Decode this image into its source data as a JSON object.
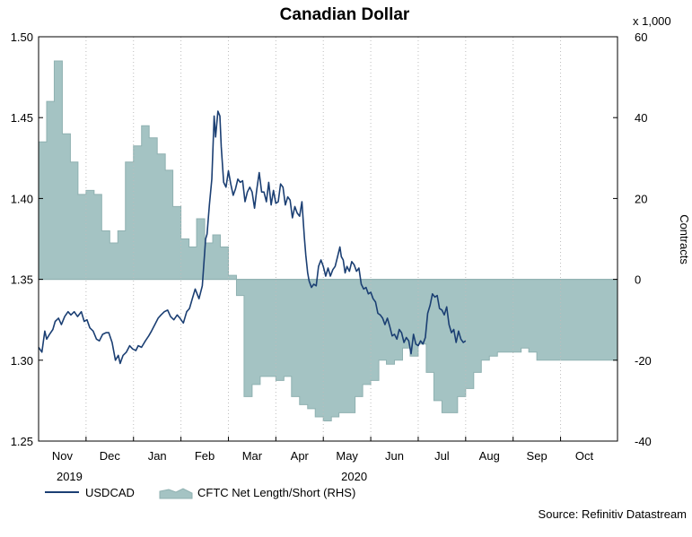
{
  "chart_data": {
    "type": "area+line",
    "title": "Canadian Dollar",
    "left_axis": {
      "range": [
        1.25,
        1.5
      ],
      "ticks": [
        "1.25",
        "1.30",
        "1.35",
        "1.40",
        "1.45",
        "1.50"
      ]
    },
    "right_axis": {
      "label": "Contracts",
      "unit_note": "x 1,000",
      "range": [
        -40,
        60
      ],
      "ticks": [
        "-40",
        "-20",
        "0",
        "20",
        "40",
        "60"
      ]
    },
    "x_axis": {
      "months": [
        {
          "label": "Nov",
          "pos": 1
        },
        {
          "label": "Dec",
          "pos": 2
        },
        {
          "label": "Jan",
          "pos": 3
        },
        {
          "label": "Feb",
          "pos": 4
        },
        {
          "label": "Mar",
          "pos": 5
        },
        {
          "label": "Apr",
          "pos": 6
        },
        {
          "label": "May",
          "pos": 7
        },
        {
          "label": "Jun",
          "pos": 8
        },
        {
          "label": "Jul",
          "pos": 9
        },
        {
          "label": "Aug",
          "pos": 10
        },
        {
          "label": "Sep",
          "pos": 11
        },
        {
          "label": "Oct",
          "pos": 12
        }
      ],
      "years": [
        {
          "label": "2019",
          "pos": 1
        },
        {
          "label": "2020",
          "pos": 7
        }
      ],
      "range": [
        0.5,
        12.7
      ]
    },
    "legend": {
      "usdcad": "USDCAD",
      "cftc": "CFTC Net Length/Short (RHS)"
    },
    "source": "Source: Refinitiv Datastream",
    "colors": {
      "line": "#1b3f73",
      "area": "#a4c3c3",
      "area_edge": "#8fb1b1",
      "grid": "#bdbdbd"
    },
    "series": [
      {
        "name": "CFTC Net Length/Short (RHS)",
        "kind": "step-area",
        "weeks": [
          [
            0.5,
            34
          ],
          [
            0.67,
            44
          ],
          [
            0.83,
            54
          ],
          [
            1.0,
            36
          ],
          [
            1.17,
            29
          ],
          [
            1.33,
            21
          ],
          [
            1.5,
            22
          ],
          [
            1.67,
            21
          ],
          [
            1.83,
            12
          ],
          [
            2.0,
            9
          ],
          [
            2.17,
            12
          ],
          [
            2.33,
            29
          ],
          [
            2.5,
            33
          ],
          [
            2.67,
            38
          ],
          [
            2.83,
            35
          ],
          [
            3.0,
            31
          ],
          [
            3.17,
            27
          ],
          [
            3.33,
            18
          ],
          [
            3.5,
            10
          ],
          [
            3.67,
            8
          ],
          [
            3.83,
            15
          ],
          [
            4.0,
            9
          ],
          [
            4.17,
            11
          ],
          [
            4.33,
            8
          ],
          [
            4.5,
            1
          ],
          [
            4.67,
            -4
          ],
          [
            4.83,
            -29
          ],
          [
            5.0,
            -26
          ],
          [
            5.17,
            -24
          ],
          [
            5.33,
            -24
          ],
          [
            5.5,
            -25
          ],
          [
            5.67,
            -24
          ],
          [
            5.83,
            -29
          ],
          [
            6.0,
            -31
          ],
          [
            6.17,
            -32
          ],
          [
            6.33,
            -34
          ],
          [
            6.5,
            -35
          ],
          [
            6.67,
            -34
          ],
          [
            6.83,
            -33
          ],
          [
            7.0,
            -33
          ],
          [
            7.17,
            -29
          ],
          [
            7.33,
            -26
          ],
          [
            7.5,
            -25
          ],
          [
            7.67,
            -20
          ],
          [
            7.83,
            -21
          ],
          [
            8.0,
            -20
          ],
          [
            8.17,
            -17
          ],
          [
            8.33,
            -19
          ],
          [
            8.5,
            -16
          ],
          [
            8.67,
            -23
          ],
          [
            8.83,
            -30
          ],
          [
            9.0,
            -33
          ],
          [
            9.17,
            -33
          ],
          [
            9.33,
            -29
          ],
          [
            9.5,
            -27
          ],
          [
            9.67,
            -23
          ],
          [
            9.83,
            -20
          ],
          [
            10.0,
            -19
          ],
          [
            10.17,
            -18
          ],
          [
            10.33,
            -18
          ],
          [
            10.5,
            -18
          ],
          [
            10.67,
            -17
          ],
          [
            10.83,
            -18
          ],
          [
            11.0,
            -20
          ]
        ]
      },
      {
        "name": "USDCAD",
        "kind": "line",
        "points": [
          [
            0.5,
            1.308
          ],
          [
            0.57,
            1.305
          ],
          [
            0.63,
            1.318
          ],
          [
            0.67,
            1.313
          ],
          [
            0.73,
            1.316
          ],
          [
            0.8,
            1.319
          ],
          [
            0.85,
            1.324
          ],
          [
            0.92,
            1.326
          ],
          [
            0.98,
            1.322
          ],
          [
            1.05,
            1.327
          ],
          [
            1.12,
            1.33
          ],
          [
            1.18,
            1.328
          ],
          [
            1.25,
            1.33
          ],
          [
            1.32,
            1.327
          ],
          [
            1.4,
            1.33
          ],
          [
            1.46,
            1.324
          ],
          [
            1.52,
            1.325
          ],
          [
            1.58,
            1.32
          ],
          [
            1.65,
            1.318
          ],
          [
            1.72,
            1.313
          ],
          [
            1.78,
            1.312
          ],
          [
            1.85,
            1.316
          ],
          [
            1.92,
            1.317
          ],
          [
            1.98,
            1.317
          ],
          [
            2.05,
            1.311
          ],
          [
            2.12,
            1.3
          ],
          [
            2.18,
            1.303
          ],
          [
            2.22,
            1.298
          ],
          [
            2.28,
            1.303
          ],
          [
            2.35,
            1.305
          ],
          [
            2.42,
            1.309
          ],
          [
            2.48,
            1.307
          ],
          [
            2.55,
            1.306
          ],
          [
            2.6,
            1.309
          ],
          [
            2.67,
            1.308
          ],
          [
            2.75,
            1.312
          ],
          [
            2.82,
            1.315
          ],
          [
            2.88,
            1.318
          ],
          [
            2.95,
            1.322
          ],
          [
            3.02,
            1.326
          ],
          [
            3.08,
            1.328
          ],
          [
            3.15,
            1.33
          ],
          [
            3.22,
            1.331
          ],
          [
            3.28,
            1.327
          ],
          [
            3.35,
            1.325
          ],
          [
            3.42,
            1.328
          ],
          [
            3.48,
            1.326
          ],
          [
            3.55,
            1.323
          ],
          [
            3.62,
            1.33
          ],
          [
            3.68,
            1.332
          ],
          [
            3.75,
            1.339
          ],
          [
            3.8,
            1.344
          ],
          [
            3.88,
            1.338
          ],
          [
            3.95,
            1.346
          ],
          [
            4.02,
            1.375
          ],
          [
            4.05,
            1.378
          ],
          [
            4.1,
            1.396
          ],
          [
            4.15,
            1.412
          ],
          [
            4.2,
            1.451
          ],
          [
            4.23,
            1.438
          ],
          [
            4.28,
            1.454
          ],
          [
            4.32,
            1.451
          ],
          [
            4.35,
            1.432
          ],
          [
            4.4,
            1.41
          ],
          [
            4.45,
            1.407
          ],
          [
            4.5,
            1.417
          ],
          [
            4.55,
            1.409
          ],
          [
            4.6,
            1.402
          ],
          [
            4.65,
            1.406
          ],
          [
            4.7,
            1.412
          ],
          [
            4.75,
            1.41
          ],
          [
            4.8,
            1.411
          ],
          [
            4.85,
            1.398
          ],
          [
            4.9,
            1.404
          ],
          [
            4.95,
            1.407
          ],
          [
            5.0,
            1.404
          ],
          [
            5.05,
            1.394
          ],
          [
            5.1,
            1.406
          ],
          [
            5.15,
            1.416
          ],
          [
            5.2,
            1.404
          ],
          [
            5.25,
            1.404
          ],
          [
            5.3,
            1.398
          ],
          [
            5.35,
            1.41
          ],
          [
            5.4,
            1.396
          ],
          [
            5.45,
            1.405
          ],
          [
            5.5,
            1.397
          ],
          [
            5.55,
            1.398
          ],
          [
            5.6,
            1.409
          ],
          [
            5.65,
            1.407
          ],
          [
            5.7,
            1.396
          ],
          [
            5.75,
            1.401
          ],
          [
            5.8,
            1.399
          ],
          [
            5.85,
            1.388
          ],
          [
            5.9,
            1.395
          ],
          [
            5.95,
            1.391
          ],
          [
            6.0,
            1.389
          ],
          [
            6.05,
            1.398
          ],
          [
            6.1,
            1.376
          ],
          [
            6.13,
            1.365
          ],
          [
            6.17,
            1.354
          ],
          [
            6.2,
            1.349
          ],
          [
            6.25,
            1.345
          ],
          [
            6.3,
            1.347
          ],
          [
            6.35,
            1.346
          ],
          [
            6.4,
            1.358
          ],
          [
            6.45,
            1.362
          ],
          [
            6.5,
            1.358
          ],
          [
            6.55,
            1.352
          ],
          [
            6.6,
            1.357
          ],
          [
            6.65,
            1.352
          ],
          [
            6.7,
            1.356
          ],
          [
            6.75,
            1.358
          ],
          [
            6.8,
            1.364
          ],
          [
            6.85,
            1.37
          ],
          [
            6.88,
            1.364
          ],
          [
            6.92,
            1.362
          ],
          [
            6.96,
            1.354
          ],
          [
            7.0,
            1.358
          ],
          [
            7.05,
            1.355
          ],
          [
            7.1,
            1.361
          ],
          [
            7.15,
            1.359
          ],
          [
            7.2,
            1.355
          ],
          [
            7.25,
            1.357
          ],
          [
            7.3,
            1.347
          ],
          [
            7.35,
            1.344
          ],
          [
            7.4,
            1.345
          ],
          [
            7.45,
            1.341
          ],
          [
            7.5,
            1.342
          ],
          [
            7.55,
            1.338
          ],
          [
            7.6,
            1.336
          ],
          [
            7.65,
            1.329
          ],
          [
            7.7,
            1.328
          ],
          [
            7.75,
            1.326
          ],
          [
            7.8,
            1.322
          ],
          [
            7.85,
            1.326
          ],
          [
            7.9,
            1.321
          ],
          [
            7.95,
            1.315
          ],
          [
            8.0,
            1.316
          ],
          [
            8.05,
            1.313
          ],
          [
            8.1,
            1.319
          ],
          [
            8.15,
            1.317
          ],
          [
            8.2,
            1.311
          ],
          [
            8.25,
            1.314
          ],
          [
            8.3,
            1.312
          ],
          [
            8.35,
            1.304
          ],
          [
            8.4,
            1.316
          ],
          [
            8.45,
            1.31
          ],
          [
            8.5,
            1.309
          ],
          [
            8.55,
            1.312
          ],
          [
            8.6,
            1.31
          ],
          [
            8.65,
            1.314
          ],
          [
            8.7,
            1.329
          ],
          [
            8.75,
            1.334
          ],
          [
            8.8,
            1.341
          ],
          [
            8.85,
            1.339
          ],
          [
            8.9,
            1.34
          ],
          [
            8.95,
            1.332
          ],
          [
            9.0,
            1.331
          ],
          [
            9.05,
            1.328
          ],
          [
            9.1,
            1.333
          ],
          [
            9.15,
            1.322
          ],
          [
            9.2,
            1.317
          ],
          [
            9.25,
            1.319
          ],
          [
            9.3,
            1.311
          ],
          [
            9.35,
            1.318
          ],
          [
            9.4,
            1.313
          ],
          [
            9.45,
            1.311
          ],
          [
            9.5,
            1.312
          ]
        ]
      }
    ]
  }
}
